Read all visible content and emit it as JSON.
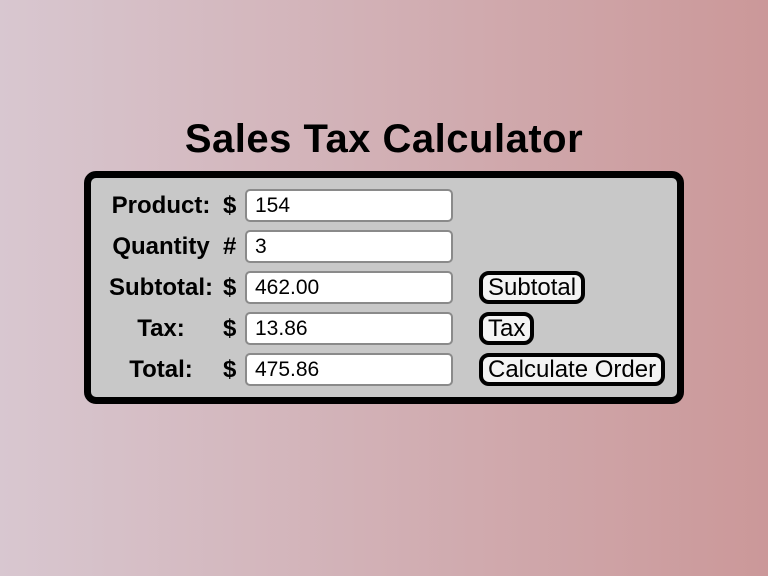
{
  "page": {
    "title": "Sales Tax Calculator"
  },
  "colors": {
    "bg_gradient_left": "#d8c7d0",
    "bg_gradient_right": "#cb9899",
    "panel_bg": "#c8c8c8",
    "panel_border": "#000000",
    "button_bg": "#f4f4f4",
    "input_border": "#8a8a8a",
    "text_color": "#000000"
  },
  "calculator": {
    "rows": [
      {
        "label": "Product:",
        "symbol": "$",
        "value": "154"
      },
      {
        "label": "Quantity",
        "symbol": "#",
        "value": "3"
      },
      {
        "label": "Subtotal:",
        "symbol": "$",
        "value": "462.00",
        "button": "Subtotal"
      },
      {
        "label": "Tax:",
        "symbol": "$",
        "value": "13.86",
        "button": "Tax"
      },
      {
        "label": "Total:",
        "symbol": "$",
        "value": "475.86",
        "button": "Calculate Order"
      }
    ]
  }
}
